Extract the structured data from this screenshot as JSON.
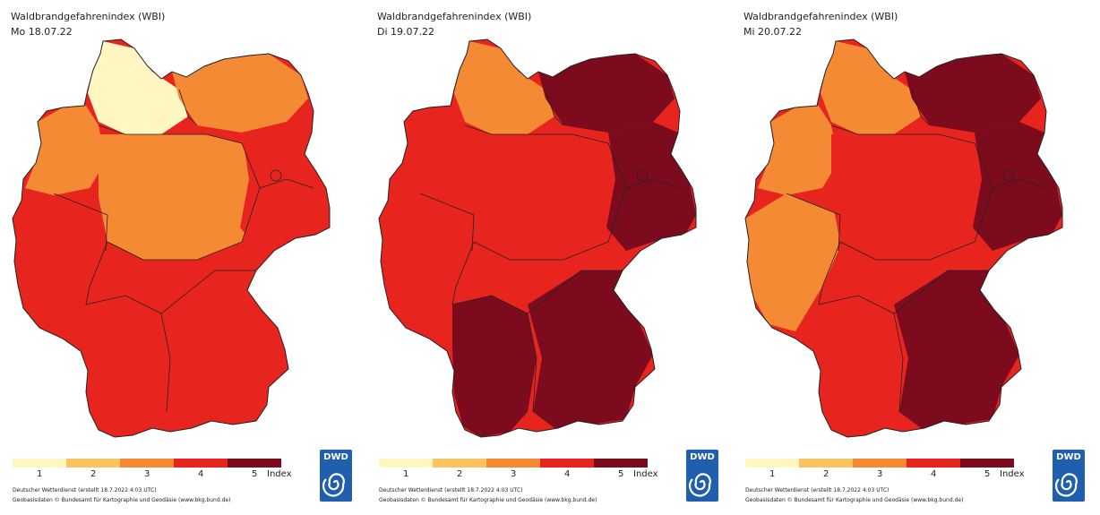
{
  "legend": {
    "labels": [
      "1",
      "2",
      "3",
      "4",
      "5"
    ],
    "index_label": "Index",
    "colors": [
      "#fff6c2",
      "#fbc363",
      "#f58a35",
      "#e8241e",
      "#7d0b1e"
    ]
  },
  "logo": {
    "text": "DWD"
  },
  "panels": [
    {
      "title": "Waldbrandgefahrenindex (WBI)",
      "date": "Mo 18.07.22",
      "footer_line1": "Deutscher Wetterdienst (erstellt 18.7.2022 4:03 UTC)",
      "footer_line2": "Geobasisdaten © Bundesamt für Kartographie und Geodäsie (www.bkg.bund.de)",
      "regions": {
        "nw": 3,
        "north": 1,
        "ne": 3,
        "west": 4,
        "center": 3,
        "east": 4,
        "sw": 4,
        "south": 4
      }
    },
    {
      "title": "Waldbrandgefahrenindex (WBI)",
      "date": "Di 19.07.22",
      "footer_line1": "Deutscher Wetterdienst (erstellt 18.7.2022 4:03 UTC)",
      "footer_line2": "Geobasisdaten © Bundesamt für Kartographie und Geodäsie (www.bkg.bund.de)",
      "regions": {
        "nw": 4,
        "north": 3,
        "ne": 5,
        "west": 4,
        "center": 4,
        "east": 5,
        "sw": 5,
        "south": 5
      }
    },
    {
      "title": "Waldbrandgefahrenindex (WBI)",
      "date": "Mi 20.07.22",
      "footer_line1": "Deutscher Wetterdienst (erstellt 18.7.2022 4:03 UTC)",
      "footer_line2": "Geobasisdaten © Bundesamt für Kartographie und Geodäsie (www.bkg.bund.de)",
      "regions": {
        "nw": 3,
        "north": 3,
        "ne": 5,
        "west": 3,
        "center": 4,
        "east": 5,
        "sw": 4,
        "south": 5
      }
    }
  ]
}
